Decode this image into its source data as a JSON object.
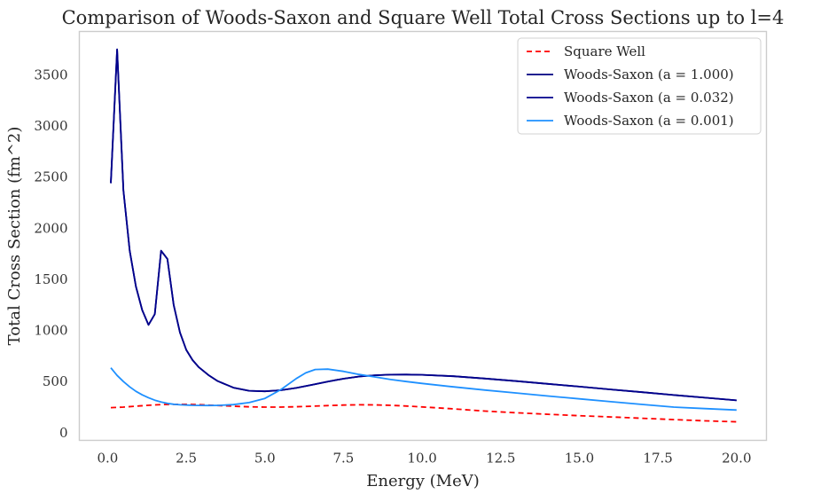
{
  "chart_data": {
    "type": "line",
    "title": "Comparison of Woods-Saxon and Square Well Total Cross Sections up to l=4",
    "xlabel": "Energy (MeV)",
    "ylabel": "Total Cross Section (fm^2)",
    "xlim": [
      -0.9,
      20.95
    ],
    "ylim": [
      -75,
      3925
    ],
    "xticks": [
      0.0,
      2.5,
      5.0,
      7.5,
      10.0,
      12.5,
      15.0,
      17.5,
      20.0
    ],
    "xtick_labels": [
      "0.0",
      "2.5",
      "5.0",
      "7.5",
      "10.0",
      "12.5",
      "15.0",
      "17.5",
      "20.0"
    ],
    "yticks": [
      0,
      500,
      1000,
      1500,
      2000,
      2500,
      3000,
      3500
    ],
    "ytick_labels": [
      "0",
      "500",
      "1000",
      "1500",
      "2000",
      "2500",
      "3000",
      "3500"
    ],
    "grid": false,
    "legend_position": "top-right",
    "series": [
      {
        "name": "Square Well",
        "color": "#ff0000",
        "dash": "dashed",
        "x": [
          0.1,
          0.5,
          1.0,
          1.5,
          2.0,
          2.5,
          3.0,
          3.5,
          4.0,
          4.5,
          5.0,
          5.5,
          6.0,
          6.5,
          7.0,
          7.5,
          8.0,
          8.5,
          9.0,
          9.5,
          10.0,
          11.0,
          12.0,
          13.0,
          14.0,
          15.0,
          16.0,
          17.0,
          18.0,
          19.0,
          20.0
        ],
        "y": [
          245,
          250,
          262,
          272,
          277,
          277,
          273,
          266,
          259,
          253,
          250,
          250,
          254,
          259,
          265,
          270,
          273,
          272,
          268,
          261,
          252,
          233,
          211,
          195,
          180,
          166,
          154,
          141,
          128,
          116,
          106
        ]
      },
      {
        "name": "Woods-Saxon (a = 1.000)",
        "color": "#000080",
        "dash": "solid",
        "x": [
          0.1,
          0.3,
          0.5,
          0.7,
          0.9,
          1.1,
          1.3,
          1.5,
          1.7,
          1.9,
          2.1,
          2.3,
          2.5,
          2.7,
          2.9,
          3.2,
          3.5,
          4.0,
          4.5,
          5.0,
          5.5,
          6.0,
          6.5,
          7.0,
          7.5,
          8.0,
          8.5,
          9.0,
          9.5,
          10.0,
          11.0,
          12.0,
          13.0,
          14.0,
          15.0,
          16.0,
          17.0,
          18.0,
          19.0,
          20.0
        ],
        "y": [
          2440,
          3750,
          2370,
          1780,
          1430,
          1200,
          1055,
          1160,
          1780,
          1700,
          1250,
          980,
          810,
          710,
          640,
          565,
          505,
          440,
          410,
          405,
          415,
          438,
          468,
          500,
          528,
          550,
          562,
          568,
          569,
          566,
          552,
          530,
          505,
          478,
          451,
          423,
          396,
          368,
          342,
          316
        ]
      },
      {
        "name": "Woods-Saxon (a = 0.032)",
        "color": "#00008b",
        "dash": "solid",
        "x": [
          0.1,
          0.3,
          0.5,
          0.7,
          0.9,
          1.1,
          1.3,
          1.5,
          1.7,
          1.9,
          2.1,
          2.3,
          2.5,
          2.7,
          2.9,
          3.2,
          3.5,
          4.0,
          4.5,
          5.0,
          5.5,
          6.0,
          6.5,
          7.0,
          7.5,
          8.0,
          8.5,
          9.0,
          9.5,
          10.0,
          11.0,
          12.0,
          13.0,
          14.0,
          15.0,
          16.0,
          17.0,
          18.0,
          19.0,
          20.0
        ],
        "y": [
          2440,
          3750,
          2370,
          1780,
          1430,
          1200,
          1055,
          1160,
          1780,
          1700,
          1250,
          980,
          810,
          710,
          640,
          565,
          505,
          440,
          410,
          405,
          415,
          438,
          468,
          500,
          528,
          550,
          562,
          568,
          569,
          566,
          552,
          530,
          505,
          478,
          451,
          423,
          396,
          368,
          342,
          316
        ]
      },
      {
        "name": "Woods-Saxon (a = 0.001)",
        "color": "#1e90ff",
        "dash": "solid",
        "x": [
          0.1,
          0.3,
          0.5,
          0.7,
          0.9,
          1.1,
          1.3,
          1.5,
          1.7,
          1.9,
          2.1,
          2.3,
          2.5,
          2.7,
          2.9,
          3.2,
          3.5,
          4.0,
          4.5,
          5.0,
          5.5,
          6.0,
          6.3,
          6.6,
          7.0,
          7.5,
          8.0,
          8.5,
          9.0,
          9.5,
          10.0,
          11.0,
          12.0,
          13.0,
          14.0,
          15.0,
          16.0,
          17.0,
          18.0,
          19.0,
          20.0
        ],
        "y": [
          635,
          560,
          500,
          448,
          405,
          370,
          342,
          318,
          300,
          287,
          278,
          273,
          270,
          268,
          267,
          266,
          267,
          275,
          295,
          335,
          420,
          530,
          585,
          618,
          622,
          600,
          570,
          545,
          520,
          500,
          482,
          448,
          417,
          388,
          359,
          331,
          303,
          276,
          250,
          236,
          222
        ]
      }
    ]
  }
}
